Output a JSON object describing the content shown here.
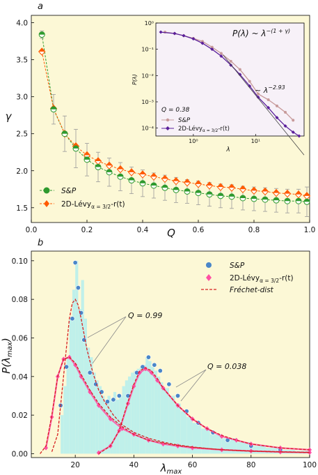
{
  "chart_data": [
    {
      "panel": "a",
      "type": "line",
      "xlabel": "Q",
      "ylabel": "γ",
      "xlim": [
        0.0,
        1.0
      ],
      "ylim": [
        1.3,
        4.1
      ],
      "xticks": [
        "0.0",
        "0.2",
        "0.4",
        "0.6",
        "0.8",
        "1.0"
      ],
      "yticks": [
        "1.5",
        "2.0",
        "2.5",
        "3.0",
        "3.5",
        "4.0"
      ],
      "grid": false,
      "legend_position": "lower-left",
      "series": [
        {
          "name": "S&P",
          "color": "#2e9a2e",
          "marker": "half-filled circle",
          "x": [
            0.038,
            0.08,
            0.12,
            0.16,
            0.2,
            0.24,
            0.28,
            0.32,
            0.36,
            0.4,
            0.44,
            0.48,
            0.52,
            0.56,
            0.6,
            0.64,
            0.68,
            0.72,
            0.76,
            0.8,
            0.84,
            0.88,
            0.92,
            0.96,
            0.99
          ],
          "y": [
            3.84,
            2.83,
            2.5,
            2.3,
            2.15,
            2.05,
            1.98,
            1.92,
            1.87,
            1.83,
            1.8,
            1.77,
            1.74,
            1.72,
            1.7,
            1.68,
            1.66,
            1.65,
            1.63,
            1.62,
            1.61,
            1.6,
            1.59,
            1.59,
            1.58
          ],
          "err": [
            0.05,
            0.2,
            0.24,
            0.26,
            0.22,
            0.2,
            0.19,
            0.19,
            0.18,
            0.18,
            0.17,
            0.17,
            0.17,
            0.16,
            0.16,
            0.16,
            0.16,
            0.16,
            0.16,
            0.16,
            0.16,
            0.16,
            0.16,
            0.16,
            0.2
          ]
        },
        {
          "name": "2D-Lévy α = 3/2 - r(t)",
          "color": "#ff5a00",
          "marker": "half-filled diamond",
          "x": [
            0.038,
            0.08,
            0.12,
            0.16,
            0.2,
            0.24,
            0.28,
            0.32,
            0.36,
            0.4,
            0.44,
            0.48,
            0.52,
            0.56,
            0.6,
            0.64,
            0.68,
            0.72,
            0.76,
            0.8,
            0.84,
            0.88,
            0.92,
            0.96,
            0.99
          ],
          "y": [
            3.61,
            2.84,
            2.5,
            2.33,
            2.21,
            2.13,
            2.07,
            2.02,
            1.98,
            1.95,
            1.92,
            1.89,
            1.86,
            1.84,
            1.82,
            1.8,
            1.78,
            1.77,
            1.75,
            1.73,
            1.72,
            1.7,
            1.69,
            1.68,
            1.66
          ]
        }
      ],
      "inset": {
        "type": "line",
        "xlabel": "λ",
        "ylabel": "P(λ)",
        "xscale": "log",
        "yscale": "log",
        "xlim": [
          0.25,
          60
        ],
        "ylim": [
          5e-05,
          1
        ],
        "xticks": [
          "10⁰",
          "10¹"
        ],
        "yticks": [
          "10⁰",
          "10⁻¹",
          "10⁻²",
          "10⁻³",
          "10⁻⁴"
        ],
        "annotation_formula": "P(λ) ~ λ^-(1 + γ)",
        "annotation_slope": "~ λ^-2.93",
        "annotation_q": "Q = 0.38",
        "legend_position": "lower-left",
        "series": [
          {
            "name": "S&P",
            "color": "#c79a9a",
            "x": [
              0.35,
              0.5,
              0.7,
              1.0,
              1.4,
              2.0,
              2.8,
              4.0,
              5.6,
              8.0,
              11,
              16,
              22,
              30,
              40
            ],
            "y": [
              0.45,
              0.4,
              0.33,
              0.26,
              0.2,
              0.12,
              0.07,
              0.035,
              0.017,
              0.006,
              0.002,
              0.0012,
              0.0007,
              0.0004,
              0.0002
            ]
          },
          {
            "name": "2D-Lévy α = 3/2 - r(t)",
            "color": "#5a1f9a",
            "x": [
              0.3,
              0.5,
              0.7,
              1.0,
              1.4,
              2.0,
              2.8,
              4.0,
              5.6,
              8.0,
              11,
              16,
              22,
              30,
              40,
              50
            ],
            "y": [
              0.45,
              0.4,
              0.33,
              0.25,
              0.17,
              0.1,
              0.055,
              0.025,
              0.011,
              0.004,
              0.0015,
              0.0006,
              0.00025,
              0.00012,
              7e-05,
              5e-05
            ]
          },
          {
            "name": "power law λ^-2.93",
            "color": "#444444",
            "x": [
              3,
              60
            ],
            "y": [
              0.061,
              9.4e-06
            ]
          }
        ]
      }
    },
    {
      "panel": "b",
      "type": "line",
      "xlabel": "λmax",
      "ylabel": "P(λmax)",
      "xlim": [
        5,
        100
      ],
      "ylim": [
        -0.002,
        0.105
      ],
      "xticks": [
        "20",
        "40",
        "60",
        "80",
        "100"
      ],
      "yticks": [
        "0.00",
        "0.02",
        "0.04",
        "0.06",
        "0.08",
        "0.10"
      ],
      "grid": false,
      "legend_position": "top-right",
      "annotations": [
        "Q = 0.99",
        "Q = 0.038"
      ],
      "histogram": {
        "color": "#bff0ea",
        "x": [
          15,
          16,
          17,
          18,
          19,
          20,
          21,
          22,
          23,
          24,
          25,
          26,
          27,
          28,
          29,
          30,
          31,
          32,
          33,
          34,
          35,
          36,
          37,
          38,
          39,
          40,
          41,
          42,
          43,
          44,
          45,
          46,
          47,
          48,
          49,
          50,
          52,
          54,
          56,
          58,
          60,
          63,
          66,
          70,
          75,
          80,
          85,
          90,
          95
        ],
        "y": [
          0.02,
          0.035,
          0.05,
          0.07,
          0.085,
          0.1,
          0.075,
          0.09,
          0.07,
          0.055,
          0.05,
          0.042,
          0.038,
          0.035,
          0.03,
          0.028,
          0.03,
          0.028,
          0.032,
          0.028,
          0.03,
          0.035,
          0.038,
          0.04,
          0.042,
          0.043,
          0.044,
          0.045,
          0.046,
          0.05,
          0.048,
          0.045,
          0.043,
          0.04,
          0.037,
          0.034,
          0.03,
          0.026,
          0.022,
          0.019,
          0.016,
          0.013,
          0.01,
          0.008,
          0.006,
          0.004,
          0.003,
          0.002,
          0.0015
        ]
      },
      "series": [
        {
          "name": "S&P",
          "color": "#4a86c8",
          "x": [
            15,
            17,
            19,
            20,
            21,
            22,
            23,
            25,
            27,
            29,
            31,
            33,
            35,
            38,
            41,
            43,
            45,
            47,
            49,
            52,
            55,
            58,
            62,
            67,
            72,
            80,
            90
          ],
          "y": [
            0.025,
            0.045,
            0.07,
            0.099,
            0.086,
            0.073,
            0.059,
            0.042,
            0.036,
            0.032,
            0.027,
            0.028,
            0.03,
            0.03,
            0.042,
            0.045,
            0.05,
            0.046,
            0.043,
            0.036,
            0.03,
            0.022,
            0.016,
            0.011,
            0.007,
            0.004,
            0.002
          ]
        },
        {
          "name": "2D-Lévy α = 3/2 - r(t)",
          "color": "#ff4fa3",
          "x": [
            10,
            12,
            14,
            16,
            18,
            20,
            22,
            25,
            28,
            32,
            36,
            40,
            45,
            50,
            55,
            60,
            70,
            80,
            90,
            100
          ],
          "y": [
            0.003,
            0.019,
            0.04,
            0.049,
            0.05,
            0.046,
            0.04,
            0.032,
            0.025,
            0.018,
            0.013,
            0.01,
            0.007,
            0.005,
            0.004,
            0.003,
            0.002,
            0.0014,
            0.0009,
            0.0006
          ]
        },
        {
          "name": "2D-Lévy α = 3/2 - r(t)",
          "color": "#ff4fa3",
          "x": [
            28,
            32,
            35,
            38,
            40,
            42,
            44,
            46,
            48,
            50,
            55,
            60,
            65,
            70,
            75,
            80,
            90,
            100
          ],
          "y": [
            0.0005,
            0.004,
            0.012,
            0.026,
            0.035,
            0.042,
            0.044,
            0.042,
            0.038,
            0.034,
            0.025,
            0.018,
            0.013,
            0.009,
            0.007,
            0.005,
            0.003,
            0.002
          ]
        },
        {
          "name": "Fréchet-dist",
          "color": "#d62020",
          "x": [
            12,
            14,
            16,
            18,
            19,
            20,
            21,
            22,
            24,
            26,
            28,
            30,
            33,
            36,
            40,
            45,
            50,
            55,
            60,
            70,
            80,
            90,
            100
          ],
          "y": [
            0.001,
            0.01,
            0.04,
            0.07,
            0.078,
            0.08,
            0.077,
            0.07,
            0.054,
            0.042,
            0.033,
            0.027,
            0.02,
            0.015,
            0.011,
            0.008,
            0.006,
            0.0045,
            0.0035,
            0.002,
            0.0013,
            0.0009,
            0.0006
          ]
        },
        {
          "name": "Fréchet-dist",
          "color": "#d62020",
          "x": [
            8,
            10,
            12,
            14,
            16,
            18,
            20,
            22,
            25,
            28,
            32,
            36,
            40,
            45,
            50,
            55,
            60,
            70,
            80,
            90,
            100
          ],
          "y": [
            0.0,
            0.004,
            0.02,
            0.04,
            0.049,
            0.05,
            0.047,
            0.041,
            0.033,
            0.026,
            0.019,
            0.014,
            0.01,
            0.007,
            0.0055,
            0.0042,
            0.0033,
            0.0021,
            0.0014,
            0.001,
            0.0007
          ]
        },
        {
          "name": "Fréchet-dist",
          "color": "#d62020",
          "x": [
            28,
            32,
            35,
            38,
            40,
            42,
            44,
            46,
            48,
            50,
            55,
            60,
            65,
            70,
            75,
            80,
            90,
            100
          ],
          "y": [
            0.0,
            0.004,
            0.012,
            0.027,
            0.036,
            0.043,
            0.0445,
            0.043,
            0.039,
            0.034,
            0.025,
            0.018,
            0.013,
            0.0095,
            0.007,
            0.005,
            0.003,
            0.002
          ]
        }
      ]
    }
  ],
  "labels": {
    "panel_a": "a",
    "panel_b": "b",
    "a_xlabel": "Q",
    "a_ylabel": "γ",
    "b_xlabel_main": "λ",
    "b_xlabel_sub": "max",
    "b_ylabel": "P(λ",
    "b_ylabel_sub": "max",
    "b_ylabel_end": ")",
    "legend_sp": "S&P",
    "legend_levy_main": "2D-Lévy",
    "legend_levy_sub": "α = 3/2",
    "legend_levy_end": "-r(t)",
    "legend_frechet": "Fréchet-dist",
    "inset_formula": "P(λ) ~ λ",
    "inset_formula_exp": "−(1 + γ)",
    "inset_slope": "~ λ",
    "inset_slope_exp": "−2.93",
    "inset_q": "Q = 0.38",
    "inset_xlabel": "λ",
    "inset_ylabel": "P(λ)",
    "anno_q099": "Q = 0.99",
    "anno_q038": "Q = 0.038"
  },
  "colors": {
    "panel_background": "#fcf8d6",
    "inset_background": "#f7f1f8",
    "sp_green": "#2e9a2e",
    "levy_orange": "#ff5a00",
    "errorbar": "#9a9a9a",
    "hist_fill": "#bff0ea",
    "sp_blue": "#4a86c8",
    "levy_pink": "#ff4fa3",
    "frechet_red": "#d62020"
  }
}
